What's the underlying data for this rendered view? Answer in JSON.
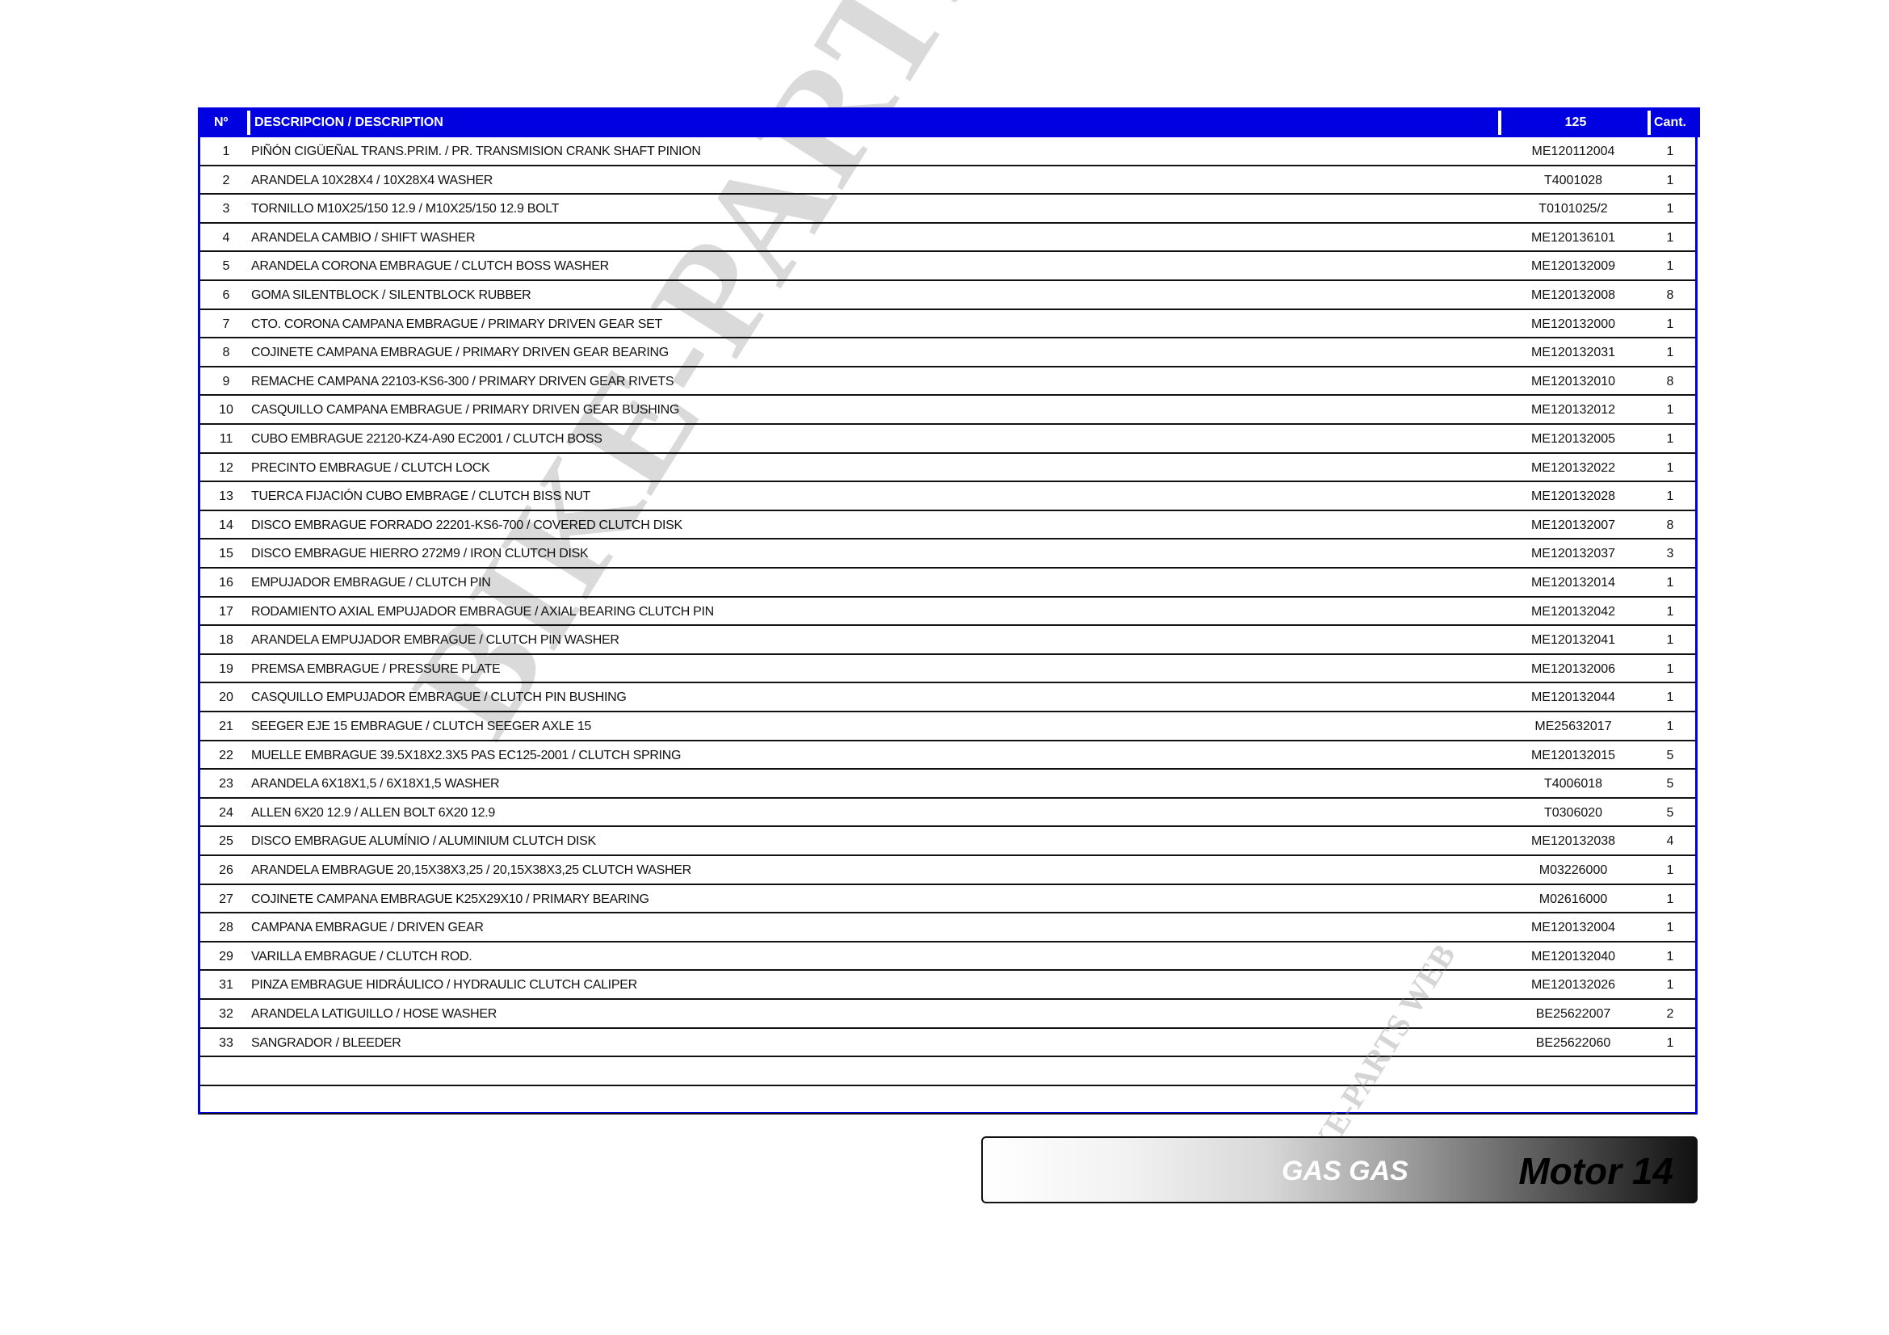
{
  "header": {
    "no": "Nº",
    "description": "DESCRIPCION / DESCRIPTION",
    "model": "125",
    "qty": "Cant."
  },
  "rows": [
    {
      "no": "1",
      "desc": "PIÑÓN CIGÜEÑAL TRANS.PRIM. / PR. TRANSMISION CRANK SHAFT PINION",
      "code": "ME120112004",
      "qty": "1"
    },
    {
      "no": "2",
      "desc": "ARANDELA 10X28X4 / 10X28X4 WASHER",
      "code": "T4001028",
      "qty": "1"
    },
    {
      "no": "3",
      "desc": "TORNILLO M10X25/150 12.9 / M10X25/150 12.9 BOLT",
      "code": "T0101025/2",
      "qty": "1"
    },
    {
      "no": "4",
      "desc": "ARANDELA CAMBIO / SHIFT WASHER",
      "code": "ME120136101",
      "qty": "1"
    },
    {
      "no": "5",
      "desc": "ARANDELA CORONA EMBRAGUE / CLUTCH BOSS WASHER",
      "code": "ME120132009",
      "qty": "1"
    },
    {
      "no": "6",
      "desc": "GOMA SILENTBLOCK / SILENTBLOCK RUBBER",
      "code": "ME120132008",
      "qty": "8"
    },
    {
      "no": "7",
      "desc": "CTO. CORONA CAMPANA EMBRAGUE / PRIMARY DRIVEN GEAR SET",
      "code": "ME120132000",
      "qty": "1"
    },
    {
      "no": "8",
      "desc": "COJINETE CAMPANA EMBRAGUE / PRIMARY DRIVEN GEAR BEARING",
      "code": "ME120132031",
      "qty": "1"
    },
    {
      "no": "9",
      "desc": "REMACHE CAMPANA 22103-KS6-300 / PRIMARY DRIVEN GEAR RIVETS",
      "code": "ME120132010",
      "qty": "8"
    },
    {
      "no": "10",
      "desc": "CASQUILLO CAMPANA EMBRAGUE / PRIMARY DRIVEN GEAR BUSHING",
      "code": "ME120132012",
      "qty": "1"
    },
    {
      "no": "11",
      "desc": "CUBO EMBRAGUE 22120-KZ4-A90 EC2001 / CLUTCH BOSS",
      "code": "ME120132005",
      "qty": "1"
    },
    {
      "no": "12",
      "desc": "PRECINTO EMBRAGUE / CLUTCH LOCK",
      "code": "ME120132022",
      "qty": "1"
    },
    {
      "no": "13",
      "desc": "TUERCA FIJACIÓN CUBO EMBRAGE / CLUTCH BISS NUT",
      "code": "ME120132028",
      "qty": "1"
    },
    {
      "no": "14",
      "desc": "DISCO EMBRAGUE FORRADO 22201-KS6-700 / COVERED CLUTCH DISK",
      "code": "ME120132007",
      "qty": "8"
    },
    {
      "no": "15",
      "desc": "DISCO EMBRAGUE HIERRO 272M9 / IRON CLUTCH DISK",
      "code": "ME120132037",
      "qty": "3"
    },
    {
      "no": "16",
      "desc": "EMPUJADOR EMBRAGUE / CLUTCH PIN",
      "code": "ME120132014",
      "qty": "1"
    },
    {
      "no": "17",
      "desc": "RODAMIENTO AXIAL EMPUJADOR EMBRAGUE / AXIAL BEARING CLUTCH PIN",
      "code": "ME120132042",
      "qty": "1"
    },
    {
      "no": "18",
      "desc": "ARANDELA EMPUJADOR EMBRAGUE / CLUTCH PIN WASHER",
      "code": "ME120132041",
      "qty": "1"
    },
    {
      "no": "19",
      "desc": "PREMSA EMBRAGUE / PRESSURE PLATE",
      "code": "ME120132006",
      "qty": "1"
    },
    {
      "no": "20",
      "desc": "CASQUILLO EMPUJADOR EMBRAGUE / CLUTCH PIN BUSHING",
      "code": "ME120132044",
      "qty": "1"
    },
    {
      "no": "21",
      "desc": "SEEGER EJE 15 EMBRAGUE / CLUTCH SEEGER AXLE 15",
      "code": "ME25632017",
      "qty": "1"
    },
    {
      "no": "22",
      "desc": "MUELLE EMBRAGUE 39.5X18X2.3X5 PAS EC125-2001 / CLUTCH SPRING",
      "code": "ME120132015",
      "qty": "5"
    },
    {
      "no": "23",
      "desc": "ARANDELA 6X18X1,5 / 6X18X1,5 WASHER",
      "code": "T4006018",
      "qty": "5"
    },
    {
      "no": "24",
      "desc": "ALLEN 6X20 12.9 / ALLEN BOLT 6X20 12.9",
      "code": "T0306020",
      "qty": "5"
    },
    {
      "no": "25",
      "desc": "DISCO EMBRAGUE ALUMÍNIO / ALUMINIUM CLUTCH DISK",
      "code": "ME120132038",
      "qty": "4"
    },
    {
      "no": "26",
      "desc": "ARANDELA EMBRAGUE 20,15X38X3,25 / 20,15X38X3,25 CLUTCH WASHER",
      "code": "M03226000",
      "qty": "1"
    },
    {
      "no": "27",
      "desc": "COJINETE CAMPANA EMBRAGUE K25X29X10 / PRIMARY BEARING",
      "code": "M02616000",
      "qty": "1"
    },
    {
      "no": "28",
      "desc": "CAMPANA EMBRAGUE / DRIVEN GEAR",
      "code": "ME120132004",
      "qty": "1"
    },
    {
      "no": "29",
      "desc": "VARILLA EMBRAGUE / CLUTCH ROD.",
      "code": "ME120132040",
      "qty": "1"
    },
    {
      "no": "31",
      "desc": "PINZA EMBRAGUE HIDRÁULICO / HYDRAULIC CLUTCH CALIPER",
      "code": "ME120132026",
      "qty": "1"
    },
    {
      "no": "32",
      "desc": "ARANDELA LATIGUILLO / HOSE WASHER",
      "code": "BE25622007",
      "qty": "2"
    },
    {
      "no": "33",
      "desc": "SANGRADOR / BLEEDER",
      "code": "BE25622060",
      "qty": "1"
    },
    {
      "no": "",
      "desc": "",
      "code": "",
      "qty": ""
    },
    {
      "no": "",
      "desc": "",
      "code": "",
      "qty": ""
    }
  ],
  "footer": {
    "brand": "GAS GAS",
    "section": "Motor 14"
  },
  "watermark": "BIKE-PARTS WEB©",
  "watermark_small": "BIKE-PARTS WEB",
  "colors": {
    "header_bg": "#0000e0",
    "border": "#0000e0"
  }
}
